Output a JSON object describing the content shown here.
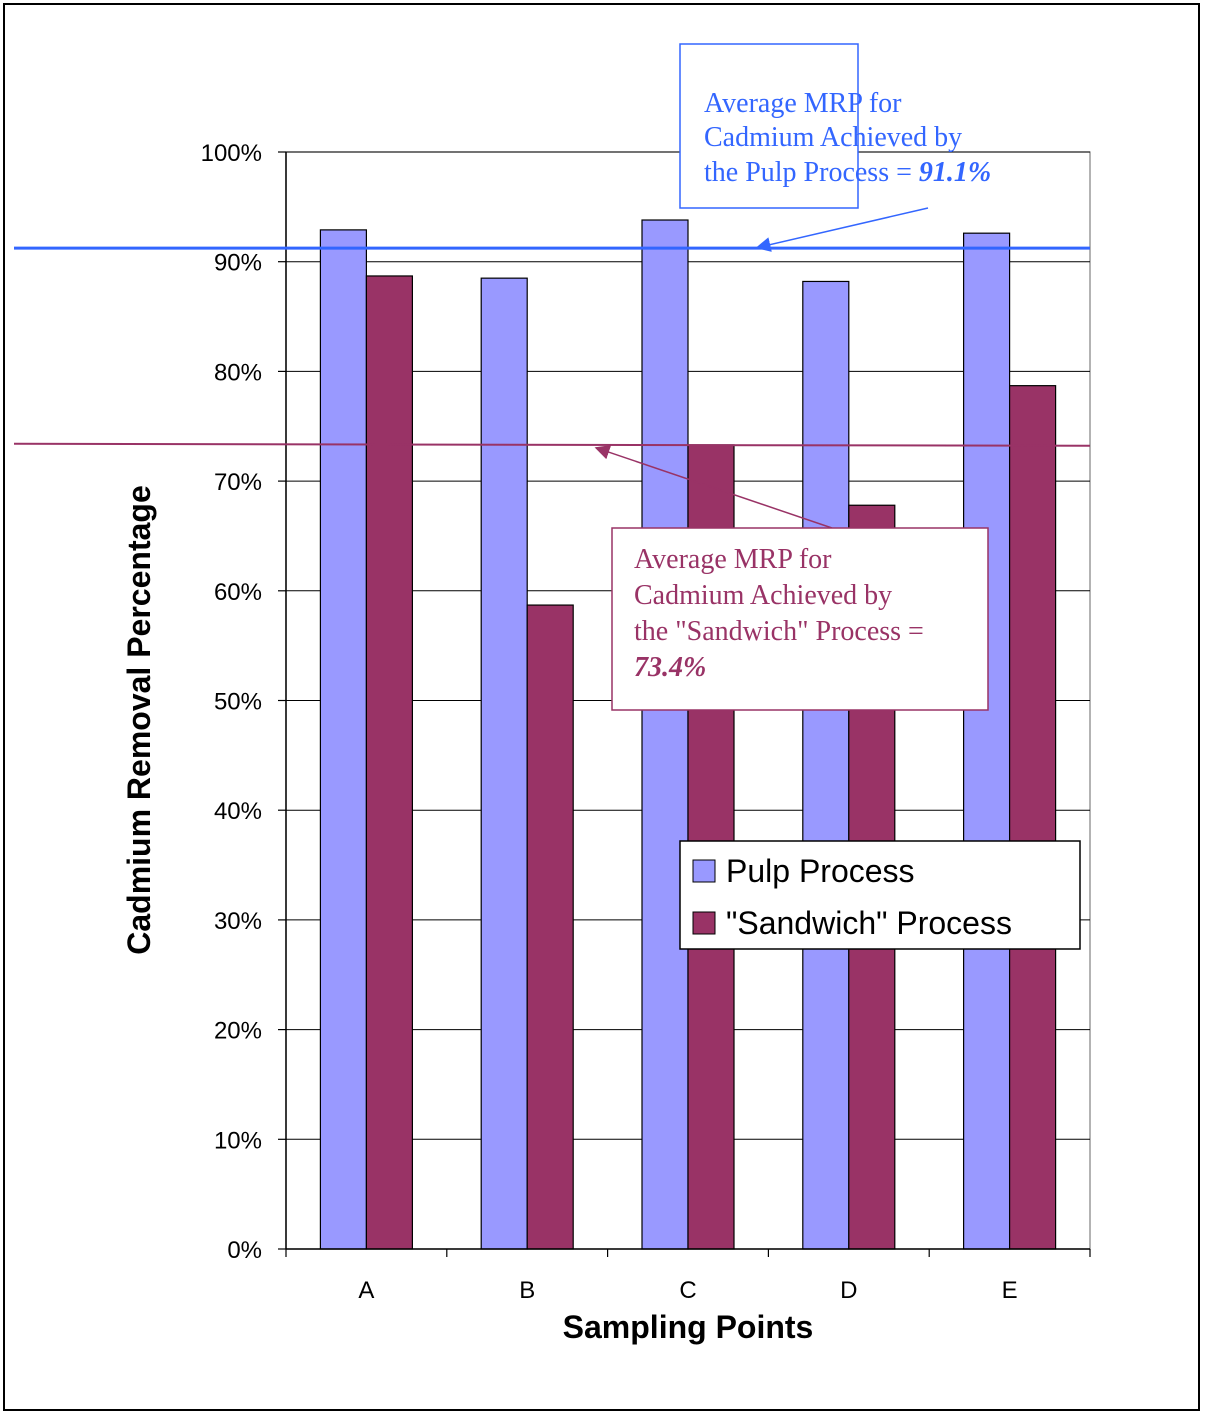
{
  "chart_data": {
    "type": "bar",
    "categories": [
      "A",
      "B",
      "C",
      "D",
      "E"
    ],
    "series": [
      {
        "name": "Pulp Process",
        "values": [
          92.9,
          88.5,
          93.8,
          88.2,
          92.6
        ],
        "color": "#9999ff"
      },
      {
        "name": "\"Sandwich\" Process",
        "values": [
          88.7,
          58.7,
          73.3,
          67.8,
          78.7
        ],
        "color": "#993366"
      }
    ],
    "title": "",
    "xlabel": "Sampling Points",
    "ylabel": "Cadmium Removal Percentage",
    "ylim": [
      0,
      100
    ],
    "yticks": [
      "0%",
      "10%",
      "20%",
      "30%",
      "40%",
      "50%",
      "60%",
      "70%",
      "80%",
      "90%",
      "100%"
    ],
    "grid": true,
    "legend_position": "lower-right",
    "reference_lines": [
      {
        "series": "Pulp Process",
        "value": 91.1,
        "color": "#3366ff",
        "label_lines": [
          "Average MRP for",
          "Cadmium Achieved by",
          "the Pulp Process = "
        ],
        "label_value": "91.1%"
      },
      {
        "series": "\"Sandwich\" Process",
        "value": 73.4,
        "color": "#993366",
        "label_lines": [
          "Average MRP for",
          "Cadmium Achieved by",
          "the \"Sandwich\" Process ="
        ],
        "label_value": "73.4%"
      }
    ]
  }
}
